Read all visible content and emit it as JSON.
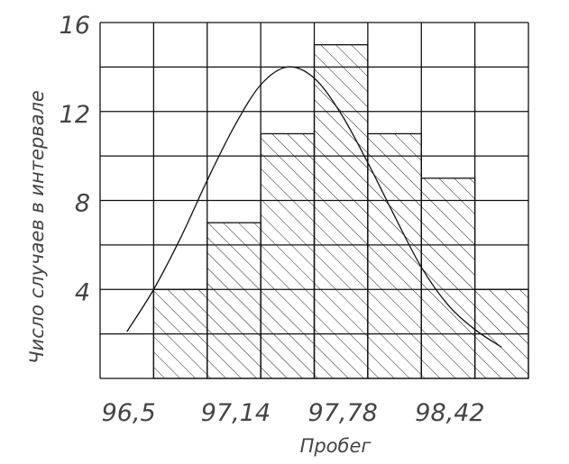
{
  "chart_data": {
    "type": "bar",
    "categories": [
      "1",
      "2",
      "3",
      "4",
      "5",
      "6",
      "7",
      "8"
    ],
    "values": [
      0,
      4,
      7,
      11,
      15,
      11,
      9,
      4
    ],
    "x_tick_labels": [
      "96,5",
      "97,14",
      "97,78",
      "98,42"
    ],
    "y_tick_labels": [
      "4",
      "8",
      "12",
      "16"
    ],
    "xlabel": "Пробег",
    "ylabel": "Число случаев в интервале",
    "ylim": [
      0,
      16
    ],
    "grid": true,
    "fill": "diagonal-hatch",
    "fit_curve": {
      "type": "line",
      "shape": "normal",
      "x": [
        1.0,
        1.5,
        2.0,
        2.5,
        3.0,
        3.5,
        4.0,
        4.5,
        5.0,
        5.5,
        6.0,
        6.5,
        7.0,
        7.5,
        8.0
      ],
      "y": [
        2.1,
        4.0,
        6.3,
        8.9,
        11.3,
        13.2,
        14.0,
        13.5,
        11.9,
        9.7,
        7.3,
        5.0,
        3.3,
        2.2,
        1.4
      ]
    }
  }
}
